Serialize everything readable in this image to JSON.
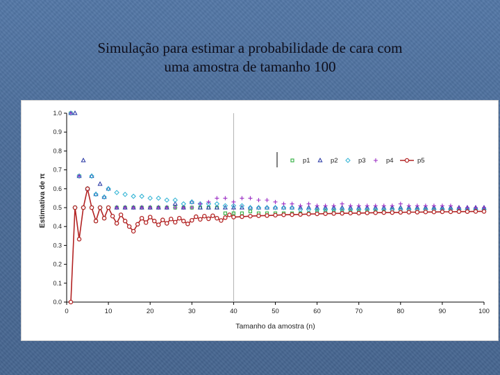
{
  "slide": {
    "title_line1": "Simulação para estimar a probabilidade de cara com",
    "title_line2": "uma amostra de tamanho 100"
  },
  "colors": {
    "background": "#4d6f9c",
    "p1": "#3cb44b",
    "p2": "#1f2fa0",
    "p3": "#38b6d6",
    "p4": "#9b2fc4",
    "p5": "#b22222",
    "gridline": "#b0b0b0"
  },
  "chart_data": {
    "type": "scatter",
    "xlabel": "Tamanho da amostra (n)",
    "ylabel": "Estimativa de π",
    "xlim": [
      0,
      100
    ],
    "ylim": [
      0.0,
      1.0
    ],
    "xticks": [
      0,
      10,
      20,
      30,
      40,
      50,
      60,
      70,
      80,
      90,
      100
    ],
    "yticks": [
      "0.0",
      "0.1",
      "0.2",
      "0.3",
      "0.4",
      "0.5",
      "0.6",
      "0.7",
      "0.8",
      "0.9",
      "1.0"
    ],
    "grid": "vertical line at x=40",
    "legend_position": "top-right",
    "series": [
      {
        "name": "p1",
        "marker": "square",
        "line": false,
        "x": [
          1,
          2,
          3,
          4,
          5,
          6,
          7,
          8,
          9,
          10,
          12,
          14,
          16,
          18,
          20,
          22,
          24,
          26,
          28,
          30,
          32,
          34,
          36,
          38,
          40,
          42,
          44,
          46,
          48,
          50,
          52,
          54,
          56,
          58,
          60,
          62,
          64,
          66,
          68,
          70,
          72,
          74,
          76,
          78,
          80,
          82,
          84,
          86,
          88,
          90,
          92,
          94,
          96,
          98,
          100
        ],
        "values": [
          1.0,
          0.5,
          0.667,
          0.5,
          0.6,
          0.5,
          0.429,
          0.5,
          0.444,
          0.5,
          0.5,
          0.5,
          0.5,
          0.5,
          0.5,
          0.5,
          0.5,
          0.5,
          0.5,
          0.5,
          0.5,
          0.5,
          0.5,
          0.47,
          0.47,
          0.47,
          0.48,
          0.47,
          0.47,
          0.47,
          0.47,
          0.47,
          0.47,
          0.47,
          0.48,
          0.48,
          0.48,
          0.48,
          0.48,
          0.48,
          0.48,
          0.48,
          0.48,
          0.49,
          0.49,
          0.49,
          0.49,
          0.49,
          0.49,
          0.49,
          0.49,
          0.49,
          0.49,
          0.49,
          0.49
        ]
      },
      {
        "name": "p2",
        "marker": "triangle",
        "line": false,
        "x": [
          1,
          2,
          3,
          4,
          5,
          6,
          7,
          8,
          9,
          10,
          12,
          14,
          16,
          18,
          20,
          22,
          24,
          26,
          28,
          30,
          32,
          34,
          36,
          38,
          40,
          42,
          44,
          46,
          48,
          50,
          52,
          54,
          56,
          58,
          60,
          62,
          64,
          66,
          68,
          70,
          72,
          74,
          76,
          78,
          80,
          82,
          84,
          86,
          88,
          90,
          92,
          94,
          96,
          98,
          100
        ],
        "values": [
          1.0,
          1.0,
          0.667,
          0.75,
          0.6,
          0.667,
          0.571,
          0.625,
          0.556,
          0.6,
          0.5,
          0.5,
          0.5,
          0.5,
          0.5,
          0.5,
          0.5,
          0.52,
          0.5,
          0.53,
          0.5,
          0.5,
          0.5,
          0.5,
          0.5,
          0.5,
          0.5,
          0.5,
          0.5,
          0.5,
          0.5,
          0.5,
          0.5,
          0.5,
          0.5,
          0.5,
          0.5,
          0.5,
          0.5,
          0.5,
          0.5,
          0.5,
          0.5,
          0.5,
          0.5,
          0.5,
          0.5,
          0.5,
          0.5,
          0.5,
          0.5,
          0.5,
          0.5,
          0.5,
          0.5
        ]
      },
      {
        "name": "p3",
        "marker": "diamond",
        "line": false,
        "x": [
          1,
          2,
          3,
          4,
          5,
          6,
          7,
          8,
          9,
          10,
          12,
          14,
          16,
          18,
          20,
          22,
          24,
          26,
          28,
          30,
          32,
          34,
          36,
          38,
          40,
          42,
          44,
          46,
          48,
          50,
          52,
          54,
          56,
          58,
          60,
          62,
          64,
          66,
          68,
          70,
          72,
          74,
          76,
          78,
          80,
          82,
          84,
          86,
          88,
          90,
          92,
          94,
          96,
          98,
          100
        ],
        "values": [
          1.0,
          0.5,
          0.667,
          0.5,
          0.6,
          0.667,
          0.571,
          0.5,
          0.556,
          0.6,
          0.58,
          0.57,
          0.56,
          0.56,
          0.55,
          0.55,
          0.54,
          0.54,
          0.52,
          0.53,
          0.52,
          0.52,
          0.52,
          0.51,
          0.51,
          0.51,
          0.5,
          0.5,
          0.5,
          0.5,
          0.5,
          0.5,
          0.49,
          0.49,
          0.49,
          0.49,
          0.49,
          0.49,
          0.49,
          0.49,
          0.49,
          0.49,
          0.49,
          0.49,
          0.49,
          0.49,
          0.49,
          0.49,
          0.49,
          0.49,
          0.49,
          0.49,
          0.49,
          0.49,
          0.49
        ]
      },
      {
        "name": "p4",
        "marker": "plus",
        "line": false,
        "x": [
          1,
          2,
          3,
          4,
          5,
          6,
          7,
          8,
          9,
          10,
          12,
          14,
          16,
          18,
          20,
          22,
          24,
          26,
          28,
          30,
          32,
          34,
          36,
          38,
          40,
          42,
          44,
          46,
          48,
          50,
          52,
          54,
          56,
          58,
          60,
          62,
          64,
          66,
          68,
          70,
          72,
          74,
          76,
          78,
          80,
          82,
          84,
          86,
          88,
          90,
          92,
          94,
          96,
          98,
          100
        ],
        "values": [
          1.0,
          0.5,
          0.667,
          0.5,
          0.6,
          0.5,
          0.429,
          0.5,
          0.444,
          0.5,
          0.5,
          0.5,
          0.5,
          0.5,
          0.5,
          0.5,
          0.5,
          0.5,
          0.5,
          0.5,
          0.52,
          0.53,
          0.55,
          0.55,
          0.53,
          0.55,
          0.55,
          0.54,
          0.54,
          0.53,
          0.52,
          0.52,
          0.51,
          0.52,
          0.51,
          0.51,
          0.51,
          0.52,
          0.51,
          0.51,
          0.51,
          0.51,
          0.51,
          0.51,
          0.52,
          0.51,
          0.51,
          0.51,
          0.51,
          0.51,
          0.51,
          0.5,
          0.5,
          0.5,
          0.5
        ]
      },
      {
        "name": "p5",
        "marker": "circle",
        "line": true,
        "x": [
          1,
          2,
          3,
          4,
          5,
          6,
          7,
          8,
          9,
          10,
          11,
          12,
          13,
          14,
          15,
          16,
          17,
          18,
          19,
          20,
          21,
          22,
          23,
          24,
          25,
          26,
          27,
          28,
          29,
          30,
          31,
          32,
          33,
          34,
          35,
          36,
          37,
          38,
          39,
          40,
          42,
          44,
          46,
          48,
          50,
          52,
          54,
          56,
          58,
          60,
          62,
          64,
          66,
          68,
          70,
          72,
          74,
          76,
          78,
          80,
          82,
          84,
          86,
          88,
          90,
          92,
          94,
          96,
          98,
          100
        ],
        "values": [
          0.0,
          0.5,
          0.333,
          0.5,
          0.6,
          0.5,
          0.429,
          0.5,
          0.444,
          0.5,
          0.455,
          0.417,
          0.462,
          0.429,
          0.4,
          0.375,
          0.412,
          0.444,
          0.421,
          0.45,
          0.429,
          0.409,
          0.435,
          0.417,
          0.44,
          0.423,
          0.444,
          0.429,
          0.414,
          0.433,
          0.452,
          0.438,
          0.455,
          0.441,
          0.457,
          0.444,
          0.432,
          0.447,
          0.462,
          0.45,
          0.452,
          0.455,
          0.457,
          0.458,
          0.46,
          0.462,
          0.463,
          0.464,
          0.466,
          0.467,
          0.468,
          0.469,
          0.47,
          0.471,
          0.471,
          0.472,
          0.473,
          0.474,
          0.474,
          0.475,
          0.476,
          0.476,
          0.477,
          0.477,
          0.478,
          0.478,
          0.479,
          0.479,
          0.48,
          0.48
        ]
      }
    ]
  }
}
